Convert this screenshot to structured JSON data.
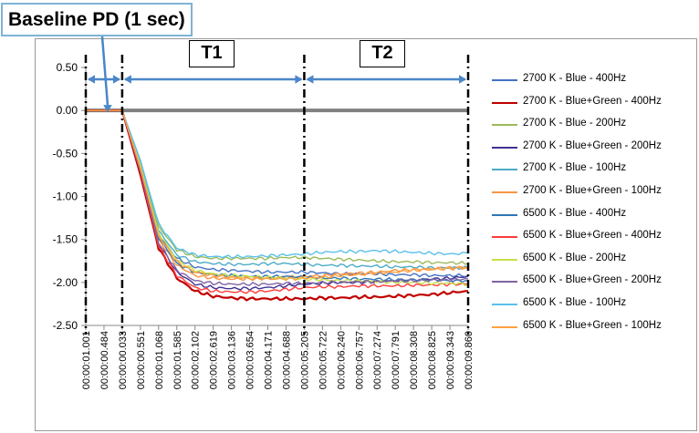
{
  "annotations": {
    "baseline_label": "Baseline PD (1 sec)",
    "t1_label": "T1",
    "t2_label": "T2"
  },
  "chart_data": {
    "type": "line",
    "title": "",
    "xlabel": "",
    "ylabel": "",
    "ylim": [
      -2.5,
      0.5
    ],
    "yticks": [
      "0.50",
      "0.00",
      "-0.50",
      "-1.00",
      "-1.50",
      "-2.00",
      "-2.50"
    ],
    "categories": [
      "00:00:01.001",
      "00:00:00.484",
      "00:00:00.033",
      "00:00:00.551",
      "00:00:01.068",
      "00:00:01.585",
      "00:00:02.102",
      "00:00:02.619",
      "00:00:03.136",
      "00:00:03.654",
      "00:00:04.171",
      "00:00:04.688",
      "00:00:05.205",
      "00:00:05.722",
      "00:00:06.240",
      "00:00:06.757",
      "00:00:07.274",
      "00:00:07.791",
      "00:00:08.308",
      "00:00:08.825",
      "00:00:09.343",
      "00:00:09.860"
    ],
    "reference_line": {
      "y": 0.0,
      "color": "#808080"
    },
    "phase_markers": [
      "00:00:01.001",
      "00:00:00.033",
      "00:00:05.205",
      "00:00:09.860"
    ],
    "grid": false,
    "legend_position": "right",
    "series": [
      {
        "name": "2700 K - Blue - 400Hz",
        "color": "#4472c4",
        "values": [
          0,
          0,
          0,
          -0.65,
          -1.45,
          -1.72,
          -1.82,
          -1.85,
          -1.86,
          -1.87,
          -1.88,
          -1.88,
          -1.88,
          -1.89,
          -1.9,
          -1.9,
          -1.9,
          -1.91,
          -1.91,
          -1.92,
          -1.92,
          -1.92
        ]
      },
      {
        "name": "2700 K - Blue+Green - 400Hz",
        "color": "#c00000",
        "values": [
          0,
          0,
          0,
          -0.75,
          -1.6,
          -1.95,
          -2.1,
          -2.16,
          -2.18,
          -2.19,
          -2.19,
          -2.19,
          -2.19,
          -2.18,
          -2.18,
          -2.17,
          -2.17,
          -2.16,
          -2.15,
          -2.14,
          -2.12,
          -2.1
        ]
      },
      {
        "name": "2700 K - Blue - 200Hz",
        "color": "#9bbb59",
        "values": [
          0,
          0,
          0,
          -0.6,
          -1.35,
          -1.62,
          -1.7,
          -1.72,
          -1.72,
          -1.72,
          -1.72,
          -1.71,
          -1.71,
          -1.72,
          -1.73,
          -1.74,
          -1.75,
          -1.76,
          -1.76,
          -1.77,
          -1.77,
          -1.78
        ]
      },
      {
        "name": "2700 K - Blue+Green - 200Hz",
        "color": "#403294",
        "values": [
          0,
          0,
          0,
          -0.7,
          -1.55,
          -1.88,
          -2.02,
          -2.06,
          -2.07,
          -2.07,
          -2.06,
          -2.04,
          -2.02,
          -2.01,
          -2.0,
          -2.0,
          -1.99,
          -1.98,
          -1.97,
          -1.96,
          -1.95,
          -1.93
        ]
      },
      {
        "name": "2700 K - Blue - 100Hz",
        "color": "#4bacc6",
        "values": [
          0,
          0,
          0,
          -0.62,
          -1.4,
          -1.68,
          -1.76,
          -1.78,
          -1.79,
          -1.79,
          -1.78,
          -1.78,
          -1.79,
          -1.8,
          -1.8,
          -1.81,
          -1.81,
          -1.82,
          -1.82,
          -1.83,
          -1.83,
          -1.83
        ]
      },
      {
        "name": "2700 K - Blue+Green - 100Hz",
        "color": "#f79646",
        "values": [
          0,
          0,
          0,
          -0.68,
          -1.5,
          -1.8,
          -1.92,
          -1.95,
          -1.96,
          -1.96,
          -1.95,
          -1.94,
          -1.93,
          -1.92,
          -1.9,
          -1.89,
          -1.88,
          -1.86,
          -1.85,
          -1.84,
          -1.83,
          -1.82
        ]
      },
      {
        "name": "6500 K - Blue - 400Hz",
        "color": "#2e75b6",
        "values": [
          0,
          0,
          0,
          -0.66,
          -1.48,
          -1.78,
          -1.88,
          -1.91,
          -1.92,
          -1.93,
          -1.93,
          -1.93,
          -1.94,
          -1.95,
          -1.95,
          -1.96,
          -1.96,
          -1.97,
          -1.97,
          -1.97,
          -1.98,
          -1.98
        ]
      },
      {
        "name": "6500 K - Blue+Green - 400Hz",
        "color": "#ff3b3b",
        "values": [
          0,
          0,
          0,
          -0.72,
          -1.58,
          -1.92,
          -2.06,
          -2.1,
          -2.11,
          -2.11,
          -2.1,
          -2.08,
          -2.06,
          -2.05,
          -2.05,
          -2.04,
          -2.04,
          -2.04,
          -2.03,
          -2.03,
          -2.02,
          -2.02
        ]
      },
      {
        "name": "6500 K - Blue - 200Hz",
        "color": "#c5e04a",
        "values": [
          0,
          0,
          0,
          -0.64,
          -1.42,
          -1.74,
          -1.86,
          -1.9,
          -1.92,
          -1.93,
          -1.94,
          -1.95,
          -1.96,
          -1.97,
          -1.98,
          -1.98,
          -1.99,
          -2.0,
          -2.0,
          -2.01,
          -2.01,
          -2.02
        ]
      },
      {
        "name": "6500 K - Blue+Green - 200Hz",
        "color": "#8064a2",
        "values": [
          0,
          0,
          0,
          -0.7,
          -1.54,
          -1.86,
          -1.98,
          -2.01,
          -2.02,
          -2.02,
          -2.02,
          -2.01,
          -2.01,
          -2.0,
          -2.0,
          -1.99,
          -1.99,
          -1.98,
          -1.98,
          -1.97,
          -1.97,
          -1.96
        ]
      },
      {
        "name": "6500 K - Blue - 100Hz",
        "color": "#5bc0eb",
        "values": [
          0,
          0,
          0,
          -0.58,
          -1.32,
          -1.6,
          -1.68,
          -1.7,
          -1.7,
          -1.7,
          -1.69,
          -1.68,
          -1.67,
          -1.65,
          -1.64,
          -1.64,
          -1.63,
          -1.64,
          -1.65,
          -1.66,
          -1.67,
          -1.66
        ]
      },
      {
        "name": "6500 K - Blue+Green - 100Hz",
        "color": "#ffa040",
        "values": [
          0,
          0,
          0,
          -0.67,
          -1.46,
          -1.76,
          -1.88,
          -1.92,
          -1.94,
          -1.95,
          -1.96,
          -1.96,
          -1.95,
          -1.94,
          -1.92,
          -1.91,
          -1.89,
          -1.88,
          -1.86,
          -1.85,
          -1.84,
          -1.83
        ]
      }
    ]
  }
}
